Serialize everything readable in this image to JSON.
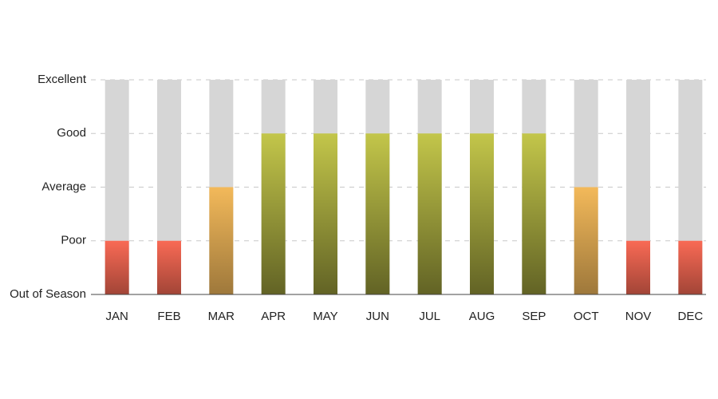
{
  "chart_data": {
    "type": "bar",
    "categories": [
      "JAN",
      "FEB",
      "MAR",
      "APR",
      "MAY",
      "JUN",
      "JUL",
      "AUG",
      "SEP",
      "OCT",
      "NOV",
      "DEC"
    ],
    "values": [
      1,
      1,
      2,
      3,
      3,
      3,
      3,
      3,
      3,
      2,
      1,
      1
    ],
    "colors": [
      "#f96a55",
      "#f96a55",
      "#f3b95a",
      "#c3c64a",
      "#c3c64a",
      "#c3c64a",
      "#c3c64a",
      "#c3c64a",
      "#c3c64a",
      "#f3b95a",
      "#f96a55",
      "#f96a55"
    ],
    "track_color": "#d6d6d6",
    "ylim": [
      0,
      4
    ],
    "yticks": [
      {
        "value": 0,
        "label": "Out of Season"
      },
      {
        "value": 1,
        "label": "Poor"
      },
      {
        "value": 2,
        "label": "Average"
      },
      {
        "value": 3,
        "label": "Good"
      },
      {
        "value": 4,
        "label": "Excellent"
      }
    ],
    "grid": true
  }
}
